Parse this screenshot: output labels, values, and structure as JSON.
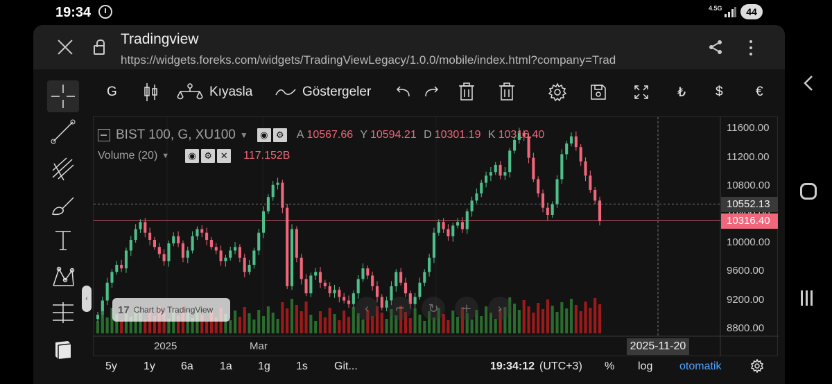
{
  "status": {
    "time": "19:34",
    "network": "4.5G",
    "battery": "44"
  },
  "browser": {
    "title": "Tradingview",
    "url": "https://widgets.foreks.com/widgets/TradingViewLegacy/1.0.0/mobile/index.html?company=Trad"
  },
  "toolbar": {
    "interval": "G",
    "compare_label": "Kıyasla",
    "indicators_label": "Göstergeler",
    "currency_try": "₺",
    "currency_usd": "$",
    "currency_eur": "€"
  },
  "legend": {
    "symbol": "BIST 100, G, XU100",
    "open_label": "A",
    "open": "10567.66",
    "high_label": "Y",
    "high": "10594.21",
    "low_label": "D",
    "low": "10301.19",
    "close_label": "K",
    "close": "10316.40",
    "volume_label": "Volume (20)",
    "volume_value": "117.152B"
  },
  "price_axis": {
    "ticks": [
      "11600.00",
      "11200.00",
      "10800.00",
      "10400.00",
      "10000.00",
      "9600.00",
      "9200.00",
      "8800.00"
    ],
    "crosshair_price": "10552.13",
    "last_price": "10316.40"
  },
  "time_axis": {
    "labels": [
      "2025",
      "Mar"
    ],
    "crosshair_date": "2025-11-20"
  },
  "watermark": "Chart by TradingView",
  "bottom_bar": {
    "ranges": [
      "5y",
      "1y",
      "6a",
      "1a",
      "1g",
      "1s",
      "Git..."
    ],
    "clock": "19:34:12",
    "timezone": "(UTC+3)",
    "percent": "%",
    "log": "log",
    "auto": "otomatik"
  },
  "colors": {
    "up": "#4fbf8a",
    "down": "#f0667a",
    "vol_up": "#2e7d32",
    "vol_down": "#b71c1c",
    "auto": "#4fa3ff"
  },
  "chart_data": {
    "type": "candlestick",
    "title": "BIST 100, G, XU100",
    "y_range": [
      8700,
      11750
    ],
    "last_close": 10316.4,
    "crosshair_price": 10552.13,
    "close_series": [
      9000,
      9200,
      9450,
      9600,
      9700,
      9650,
      9900,
      10050,
      10200,
      10300,
      10150,
      10050,
      9950,
      9850,
      9750,
      10000,
      10100,
      10000,
      9800,
      9900,
      10100,
      10200,
      10150,
      10050,
      9950,
      9900,
      9750,
      9800,
      9900,
      9950,
      9800,
      9600,
      9700,
      9900,
      10150,
      10450,
      10650,
      10820,
      10850,
      10500,
      9400,
      10200,
      9800,
      9500,
      9300,
      9550,
      9600,
      9450,
      9400,
      9300,
      9350,
      9250,
      9200,
      9150,
      9300,
      9500,
      9650,
      9550,
      9400,
      9250,
      9100,
      9200,
      9400,
      9600,
      9450,
      9300,
      9150,
      9250,
      9450,
      9600,
      9800,
      10150,
      10300,
      10200,
      10100,
      10250,
      10300,
      10200,
      10450,
      10600,
      10700,
      10850,
      10950,
      11000,
      11100,
      10950,
      11000,
      11300,
      11450,
      11550,
      11500,
      11200,
      10900,
      10700,
      10500,
      10400,
      10550,
      10900,
      11250,
      11400,
      11500,
      11350,
      11150,
      10950,
      10750,
      10600,
      10316
    ]
  }
}
